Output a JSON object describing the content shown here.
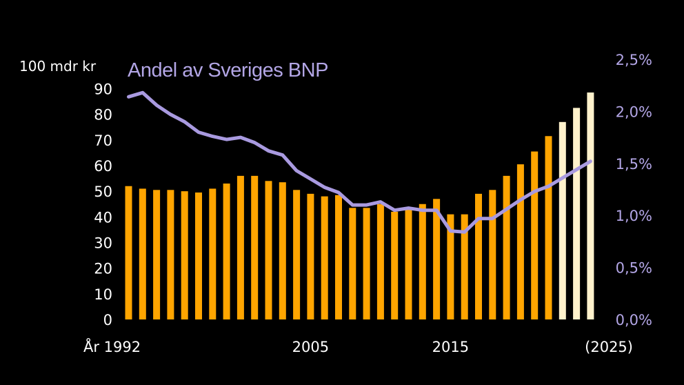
{
  "chart_data": {
    "type": "bar",
    "title": "",
    "left_axis": {
      "unit_label": "100 mdr kr",
      "ylim": [
        0,
        90
      ],
      "ticks": [
        "0",
        "10",
        "20",
        "30",
        "40",
        "50",
        "60",
        "70",
        "80",
        "90"
      ]
    },
    "right_axis": {
      "ylim": [
        0.0,
        2.5
      ],
      "ticks": [
        "0,0%",
        "0,5%",
        "1,0%",
        "1,5%",
        "2,0%",
        "2,5%"
      ]
    },
    "x_ticks": [
      {
        "year": 1992,
        "label": "År 1992"
      },
      {
        "year": 2005,
        "label": "2005"
      },
      {
        "year": 2015,
        "label": "2015"
      },
      {
        "year": 2025,
        "label": "(2025)"
      }
    ],
    "years": [
      1992,
      1993,
      1994,
      1995,
      1996,
      1997,
      1998,
      1999,
      2000,
      2001,
      2002,
      2003,
      2004,
      2005,
      2006,
      2007,
      2008,
      2009,
      2010,
      2011,
      2012,
      2013,
      2014,
      2015,
      2016,
      2017,
      2018,
      2019,
      2020,
      2021,
      2022,
      2023,
      2024,
      2025
    ],
    "series": [
      {
        "kind": "bar",
        "axis": "left",
        "color": "#ffa500",
        "forecast_color": "#fff2cc",
        "forecast_from": 2023,
        "values": [
          52,
          51,
          50.5,
          50.5,
          50,
          49.5,
          51,
          53,
          56,
          56,
          54,
          53.5,
          50.5,
          49,
          48,
          48.5,
          43.5,
          43.5,
          45,
          42,
          43,
          45,
          47,
          41,
          41,
          49,
          50.5,
          56,
          60.5,
          65.5,
          71.5,
          77,
          82.5,
          88.5
        ]
      },
      {
        "kind": "line",
        "axis": "right",
        "name": "Andel av Sveriges BNP",
        "color": "#a99ae0",
        "values": [
          2.14,
          2.18,
          2.06,
          1.97,
          1.9,
          1.8,
          1.76,
          1.73,
          1.75,
          1.7,
          1.62,
          1.58,
          1.43,
          1.35,
          1.27,
          1.22,
          1.1,
          1.1,
          1.13,
          1.05,
          1.07,
          1.05,
          1.05,
          0.85,
          0.84,
          0.97,
          0.97,
          1.06,
          1.15,
          1.23,
          1.28,
          1.36,
          1.44,
          1.52
        ]
      }
    ]
  }
}
